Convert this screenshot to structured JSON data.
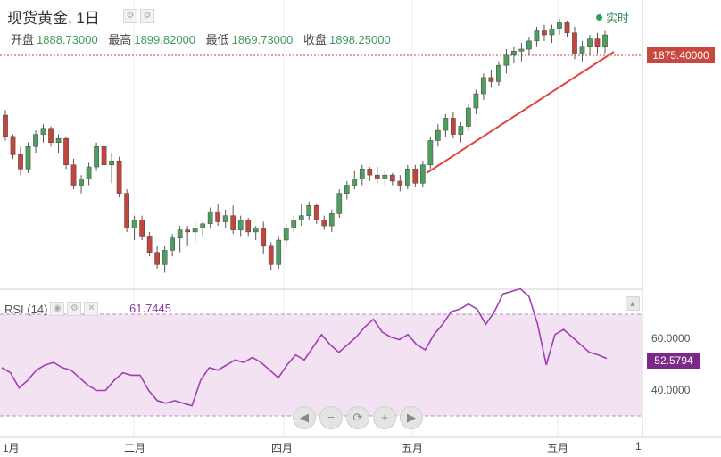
{
  "header": {
    "title": "现货黄金, 1日",
    "live_label": "实时",
    "ohlc": [
      {
        "label": "开盘",
        "value": "1888.73000"
      },
      {
        "label": "最高",
        "value": "1899.82000"
      },
      {
        "label": "最低",
        "value": "1869.73000"
      },
      {
        "label": "收盘",
        "value": "1898.25000"
      }
    ],
    "current_price": "1875.40000"
  },
  "rsi": {
    "label": "RSI (14)",
    "value": "61.7445",
    "current": "52.5794",
    "ticks": [
      "60.0000",
      "40.0000"
    ]
  },
  "x_labels": [
    "1月",
    "二月",
    "四月",
    "五月",
    "五月",
    "1"
  ],
  "nav_buttons": [
    "◀",
    "−",
    "⟳",
    "+",
    "▶"
  ],
  "colors": {
    "up": "#4f9e5e",
    "down": "#c4453c",
    "rsi_line": "#a13db5",
    "rsi_band": "#f2e2f2",
    "trend": "#e04545"
  },
  "chart_data": {
    "type": "candlestick",
    "price_candles": [
      [
        1899,
        1904,
        1874,
        1878
      ],
      [
        1878,
        1880,
        1856,
        1860
      ],
      [
        1860,
        1868,
        1840,
        1846
      ],
      [
        1846,
        1872,
        1842,
        1868
      ],
      [
        1868,
        1884,
        1862,
        1880
      ],
      [
        1880,
        1890,
        1872,
        1886
      ],
      [
        1886,
        1888,
        1868,
        1872
      ],
      [
        1872,
        1880,
        1862,
        1876
      ],
      [
        1876,
        1878,
        1846,
        1850
      ],
      [
        1850,
        1856,
        1826,
        1830
      ],
      [
        1830,
        1840,
        1822,
        1836
      ],
      [
        1836,
        1852,
        1830,
        1848
      ],
      [
        1848,
        1872,
        1844,
        1868
      ],
      [
        1868,
        1870,
        1846,
        1850
      ],
      [
        1850,
        1862,
        1832,
        1854
      ],
      [
        1854,
        1858,
        1818,
        1822
      ],
      [
        1822,
        1826,
        1784,
        1788
      ],
      [
        1788,
        1800,
        1776,
        1796
      ],
      [
        1796,
        1800,
        1776,
        1780
      ],
      [
        1780,
        1784,
        1760,
        1764
      ],
      [
        1764,
        1770,
        1748,
        1752
      ],
      [
        1752,
        1770,
        1744,
        1766
      ],
      [
        1766,
        1782,
        1760,
        1778
      ],
      [
        1778,
        1790,
        1764,
        1786
      ],
      [
        1786,
        1790,
        1770,
        1784
      ],
      [
        1784,
        1794,
        1774,
        1788
      ],
      [
        1788,
        1794,
        1780,
        1792
      ],
      [
        1792,
        1808,
        1788,
        1804
      ],
      [
        1804,
        1812,
        1790,
        1794
      ],
      [
        1794,
        1806,
        1788,
        1800
      ],
      [
        1800,
        1810,
        1782,
        1786
      ],
      [
        1786,
        1800,
        1780,
        1796
      ],
      [
        1796,
        1798,
        1780,
        1784
      ],
      [
        1784,
        1790,
        1776,
        1788
      ],
      [
        1788,
        1794,
        1762,
        1770
      ],
      [
        1770,
        1774,
        1746,
        1752
      ],
      [
        1752,
        1780,
        1748,
        1776
      ],
      [
        1776,
        1792,
        1770,
        1788
      ],
      [
        1788,
        1800,
        1784,
        1796
      ],
      [
        1796,
        1812,
        1790,
        1800
      ],
      [
        1800,
        1814,
        1796,
        1810
      ],
      [
        1810,
        1812,
        1792,
        1796
      ],
      [
        1796,
        1800,
        1786,
        1790
      ],
      [
        1790,
        1806,
        1784,
        1802
      ],
      [
        1802,
        1826,
        1798,
        1822
      ],
      [
        1822,
        1834,
        1816,
        1830
      ],
      [
        1830,
        1844,
        1826,
        1836
      ],
      [
        1836,
        1850,
        1830,
        1846
      ],
      [
        1846,
        1848,
        1834,
        1840
      ],
      [
        1840,
        1848,
        1832,
        1836
      ],
      [
        1836,
        1844,
        1830,
        1840
      ],
      [
        1840,
        1842,
        1830,
        1834
      ],
      [
        1834,
        1840,
        1824,
        1830
      ],
      [
        1830,
        1850,
        1826,
        1846
      ],
      [
        1846,
        1850,
        1828,
        1832
      ],
      [
        1832,
        1854,
        1828,
        1850
      ],
      [
        1850,
        1878,
        1846,
        1874
      ],
      [
        1874,
        1890,
        1868,
        1884
      ],
      [
        1884,
        1900,
        1878,
        1896
      ],
      [
        1896,
        1902,
        1876,
        1880
      ],
      [
        1880,
        1892,
        1872,
        1888
      ],
      [
        1888,
        1910,
        1884,
        1906
      ],
      [
        1906,
        1924,
        1900,
        1920
      ],
      [
        1920,
        1940,
        1914,
        1936
      ],
      [
        1936,
        1944,
        1926,
        1932
      ],
      [
        1932,
        1952,
        1928,
        1948
      ],
      [
        1948,
        1964,
        1940,
        1958
      ],
      [
        1958,
        1966,
        1950,
        1962
      ],
      [
        1962,
        1970,
        1952,
        1964
      ],
      [
        1964,
        1976,
        1958,
        1972
      ],
      [
        1972,
        1986,
        1966,
        1982
      ],
      [
        1982,
        1988,
        1972,
        1978
      ],
      [
        1978,
        1988,
        1970,
        1984
      ],
      [
        1984,
        1994,
        1978,
        1990
      ],
      [
        1990,
        1992,
        1976,
        1980
      ],
      [
        1980,
        1986,
        1954,
        1960
      ],
      [
        1960,
        1972,
        1952,
        1966
      ],
      [
        1966,
        1978,
        1958,
        1974
      ],
      [
        1974,
        1980,
        1960,
        1966
      ],
      [
        1966,
        1982,
        1960,
        1978
      ]
    ],
    "rsi_values": [
      49,
      47,
      41,
      44,
      48,
      50,
      51,
      49,
      48,
      45,
      42,
      40,
      40,
      44,
      47,
      46,
      46,
      40,
      36,
      35,
      36,
      35,
      34,
      44,
      49,
      48,
      50,
      52,
      51,
      53,
      51,
      48,
      45,
      50,
      54,
      52,
      57,
      62,
      58,
      55,
      58,
      61,
      65,
      68,
      63,
      61,
      60,
      62,
      58,
      56,
      62,
      66,
      71,
      72,
      74,
      72,
      66,
      71,
      78,
      79,
      80,
      77,
      66,
      50,
      62,
      64,
      61,
      58,
      55,
      54,
      52.5794
    ],
    "rsi_bands": [
      70,
      30
    ],
    "price_axis": [
      "1875.40000"
    ],
    "trendline": "support"
  }
}
